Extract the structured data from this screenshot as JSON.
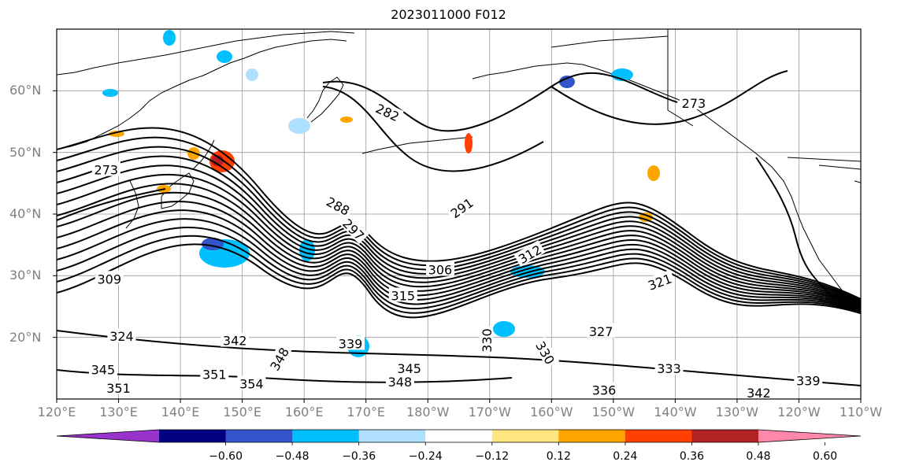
{
  "title": "2023011000 F012",
  "lat_labels": [
    "60°N",
    "50°N",
    "40°N",
    "30°N",
    "20°N"
  ],
  "lon_labels": [
    "120°E",
    "130°E",
    "140°E",
    "150°E",
    "160°E",
    "170°E",
    "180°W",
    "170°W",
    "160°W",
    "150°W",
    "140°W",
    "130°W",
    "120°W",
    "110°W"
  ],
  "colorbar": {
    "ticks": [
      "−0.60",
      "−0.48",
      "−0.36",
      "−0.24",
      "−0.12",
      "0.12",
      "0.24",
      "0.36",
      "0.48",
      "0.60"
    ],
    "colors": [
      "#9933cc",
      "#000080",
      "#3355cc",
      "#00bfff",
      "#b0e0ff",
      "#ffffff",
      "#ffe680",
      "#ffa500",
      "#ff4000",
      "#b22222",
      "#ff88aa"
    ]
  },
  "contour_labels": [
    {
      "text": "273",
      "lon": 128.0,
      "lat": 47.2,
      "rot": 0
    },
    {
      "text": "282",
      "lon": 173.5,
      "lat": 56.5,
      "rot": 25
    },
    {
      "text": "288",
      "lon": 165.5,
      "lat": 41.3,
      "rot": 28
    },
    {
      "text": "297",
      "lon": 168.0,
      "lat": 37.5,
      "rot": 45
    },
    {
      "text": "291",
      "lon": 185.5,
      "lat": 41.0,
      "rot": -35
    },
    {
      "text": "306",
      "lon": 182.0,
      "lat": 31.0,
      "rot": 0
    },
    {
      "text": "315",
      "lon": 176.0,
      "lat": 26.8,
      "rot": 0
    },
    {
      "text": "312",
      "lon": 196.5,
      "lat": 33.5,
      "rot": -30
    },
    {
      "text": "321",
      "lon": 217.5,
      "lat": 29.0,
      "rot": -20
    },
    {
      "text": "327",
      "lon": 208.0,
      "lat": 21.0,
      "rot": 0
    },
    {
      "text": "309",
      "lon": 128.5,
      "lat": 29.5,
      "rot": 0
    },
    {
      "text": "324",
      "lon": 130.5,
      "lat": 20.2,
      "rot": 0
    },
    {
      "text": "342",
      "lon": 148.8,
      "lat": 19.5,
      "rot": 0
    },
    {
      "text": "348",
      "lon": 156.0,
      "lat": 16.5,
      "rot": -60
    },
    {
      "text": "345",
      "lon": 127.5,
      "lat": 14.8,
      "rot": 0
    },
    {
      "text": "351",
      "lon": 130.0,
      "lat": 11.8,
      "rot": 0
    },
    {
      "text": "351",
      "lon": 145.5,
      "lat": 14.0,
      "rot": 0
    },
    {
      "text": "354",
      "lon": 151.5,
      "lat": 12.5,
      "rot": 0
    },
    {
      "text": "339",
      "lon": 167.5,
      "lat": 19.0,
      "rot": 0
    },
    {
      "text": "345",
      "lon": 177.0,
      "lat": 15.0,
      "rot": 0
    },
    {
      "text": "348",
      "lon": 175.5,
      "lat": 12.8,
      "rot": 0
    },
    {
      "text": "330",
      "lon": 189.5,
      "lat": 19.5,
      "rot": -90
    },
    {
      "text": "330",
      "lon": 199.0,
      "lat": 17.5,
      "rot": 60
    },
    {
      "text": "336",
      "lon": 208.5,
      "lat": 11.5,
      "rot": 0
    },
    {
      "text": "333",
      "lon": 219.0,
      "lat": 15.0,
      "rot": 0
    },
    {
      "text": "342",
      "lon": 233.5,
      "lat": 11.0,
      "rot": 0
    },
    {
      "text": "339",
      "lon": 241.5,
      "lat": 13.0,
      "rot": 0
    },
    {
      "text": "273",
      "lon": 223.0,
      "lat": 58.0,
      "rot": 0
    }
  ]
}
